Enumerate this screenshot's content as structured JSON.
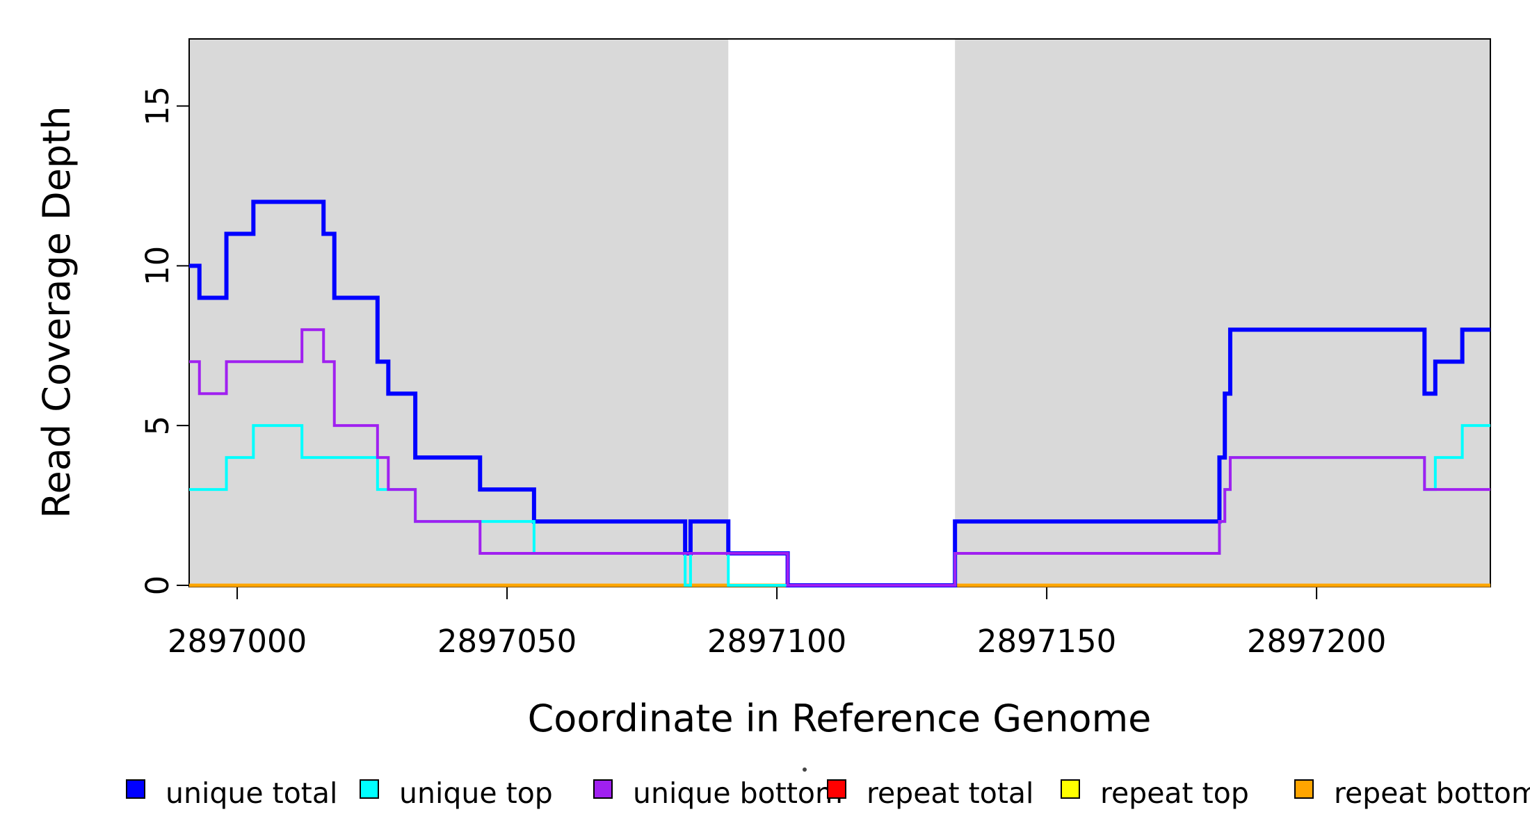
{
  "chart_data": {
    "type": "line",
    "subtype": "step-coverage-plot",
    "title": "",
    "xlabel": "Coordinate in Reference Genome",
    "ylabel": "Read Coverage Depth",
    "xlim": [
      2896991.1,
      2897232.2
    ],
    "ylim": [
      0,
      17.1
    ],
    "x_ticks": [
      2897000,
      2897050,
      2897100,
      2897150,
      2897200
    ],
    "y_ticks": [
      0,
      5,
      10,
      15
    ],
    "grid": false,
    "legend_position": "bottom",
    "background_color": "#ffffff",
    "band_color": "#d9d9d9",
    "background_regions": [
      {
        "name": "aligned-band-left",
        "x0": 2896991.1,
        "x1": 2897091.0
      },
      {
        "name": "aligned-band-right",
        "x0": 2897133.0,
        "x1": 2897232.2
      }
    ],
    "series": [
      {
        "name": "repeat total",
        "color": "#ff0000",
        "width": 5,
        "steps": [
          [
            2896991.1,
            0
          ]
        ],
        "end": 2897232.2
      },
      {
        "name": "repeat top",
        "color": "#ffff00",
        "width": 5,
        "steps": [
          [
            2896991.1,
            0
          ]
        ],
        "end": 2897232.2
      },
      {
        "name": "repeat bottom",
        "color": "#ffa500",
        "width": 5,
        "steps": [
          [
            2896991.1,
            0
          ]
        ],
        "end": 2897232.2
      },
      {
        "name": "unique total",
        "color": "#0000ff",
        "width": 6,
        "steps": [
          [
            2896991.1,
            10
          ],
          [
            2896993,
            9
          ],
          [
            2896998,
            11
          ],
          [
            2897003,
            12
          ],
          [
            2897016,
            11
          ],
          [
            2897018,
            9
          ],
          [
            2897026,
            7
          ],
          [
            2897028,
            6
          ],
          [
            2897033,
            4
          ],
          [
            2897045,
            3
          ],
          [
            2897055,
            2
          ],
          [
            2897083,
            1
          ],
          [
            2897084,
            2
          ],
          [
            2897091,
            1
          ],
          [
            2897102,
            0
          ],
          [
            2897133,
            2
          ],
          [
            2897182,
            4
          ],
          [
            2897183,
            6
          ],
          [
            2897184,
            8
          ],
          [
            2897220,
            6
          ],
          [
            2897222,
            7
          ],
          [
            2897227,
            8
          ]
        ],
        "end": 2897232.2
      },
      {
        "name": "unique top",
        "color": "#00ffff",
        "width": 4,
        "steps": [
          [
            2896991.1,
            3
          ],
          [
            2896998,
            4
          ],
          [
            2897003,
            5
          ],
          [
            2897012,
            4
          ],
          [
            2897026,
            3
          ],
          [
            2897033,
            2
          ],
          [
            2897055,
            1
          ],
          [
            2897083,
            0
          ],
          [
            2897084,
            1
          ],
          [
            2897091,
            0
          ],
          [
            2897133,
            1
          ],
          [
            2897182,
            2
          ],
          [
            2897183,
            3
          ],
          [
            2897184,
            4
          ],
          [
            2897220,
            3
          ],
          [
            2897222,
            4
          ],
          [
            2897227,
            5
          ]
        ],
        "end": 2897232.2
      },
      {
        "name": "unique bottom",
        "color": "#a020f0",
        "width": 4,
        "steps": [
          [
            2896991.1,
            7
          ],
          [
            2896993,
            6
          ],
          [
            2896998,
            7
          ],
          [
            2897012,
            8
          ],
          [
            2897016,
            7
          ],
          [
            2897018,
            5
          ],
          [
            2897026,
            4
          ],
          [
            2897028,
            3
          ],
          [
            2897033,
            2
          ],
          [
            2897045,
            1
          ],
          [
            2897102,
            0
          ],
          [
            2897133,
            1
          ],
          [
            2897182,
            2
          ],
          [
            2897183,
            3
          ],
          [
            2897184,
            4
          ],
          [
            2897220,
            3
          ]
        ],
        "end": 2897232.2
      }
    ],
    "legend": [
      {
        "label": "unique total",
        "color": "#0000ff"
      },
      {
        "label": "unique top",
        "color": "#00ffff"
      },
      {
        "label": "unique bottom",
        "color": "#a020f0"
      },
      {
        "label": "repeat total",
        "color": "#ff0000"
      },
      {
        "label": "repeat top",
        "color": "#ffff00"
      },
      {
        "label": "repeat bottom",
        "color": "#ffa500"
      }
    ]
  }
}
